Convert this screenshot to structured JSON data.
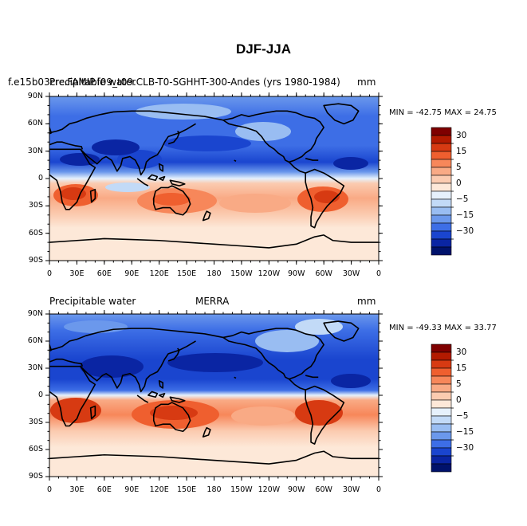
{
  "figure": {
    "title": "DJF-JJA",
    "panels": [
      {
        "id": "model",
        "left_label": "Precipitable water",
        "overlap_label": "f.e15b03crc.FAMIP.f09_t09.CLB-T0-SGHHT-300-Andes (yrs 1980-1984)",
        "center_label": "",
        "units": "mm",
        "stats": "MIN = -42.75 MAX =  24.75",
        "min": -42.75,
        "max": 24.75
      },
      {
        "id": "merra",
        "left_label": "Precipitable water",
        "overlap_label": "",
        "center_label": "MERRA",
        "units": "mm",
        "stats": "MIN = -49.33 MAX =  33.77",
        "min": -49.33,
        "max": 33.77
      }
    ],
    "lat_ticks": [
      "90N",
      "60N",
      "30N",
      "0",
      "30S",
      "60S",
      "90S"
    ],
    "lon_ticks": [
      "0",
      "30E",
      "60E",
      "90E",
      "120E",
      "150E",
      "180",
      "150W",
      "120W",
      "90W",
      "60W",
      "30W",
      "0"
    ],
    "colorbar": {
      "labels": [
        "30",
        "15",
        "5",
        "0",
        "-5",
        "-15",
        "-30"
      ],
      "colors": [
        "#7f0000",
        "#b31a00",
        "#d73a12",
        "#ef5f2f",
        "#f7875a",
        "#f9aa85",
        "#fbcbb0",
        "#fde8d8",
        "#e6f1fc",
        "#c2daf7",
        "#99bdf2",
        "#6b98ec",
        "#3d6ee6",
        "#1a45cf",
        "#0a25a3",
        "#00126b"
      ]
    }
  }
}
